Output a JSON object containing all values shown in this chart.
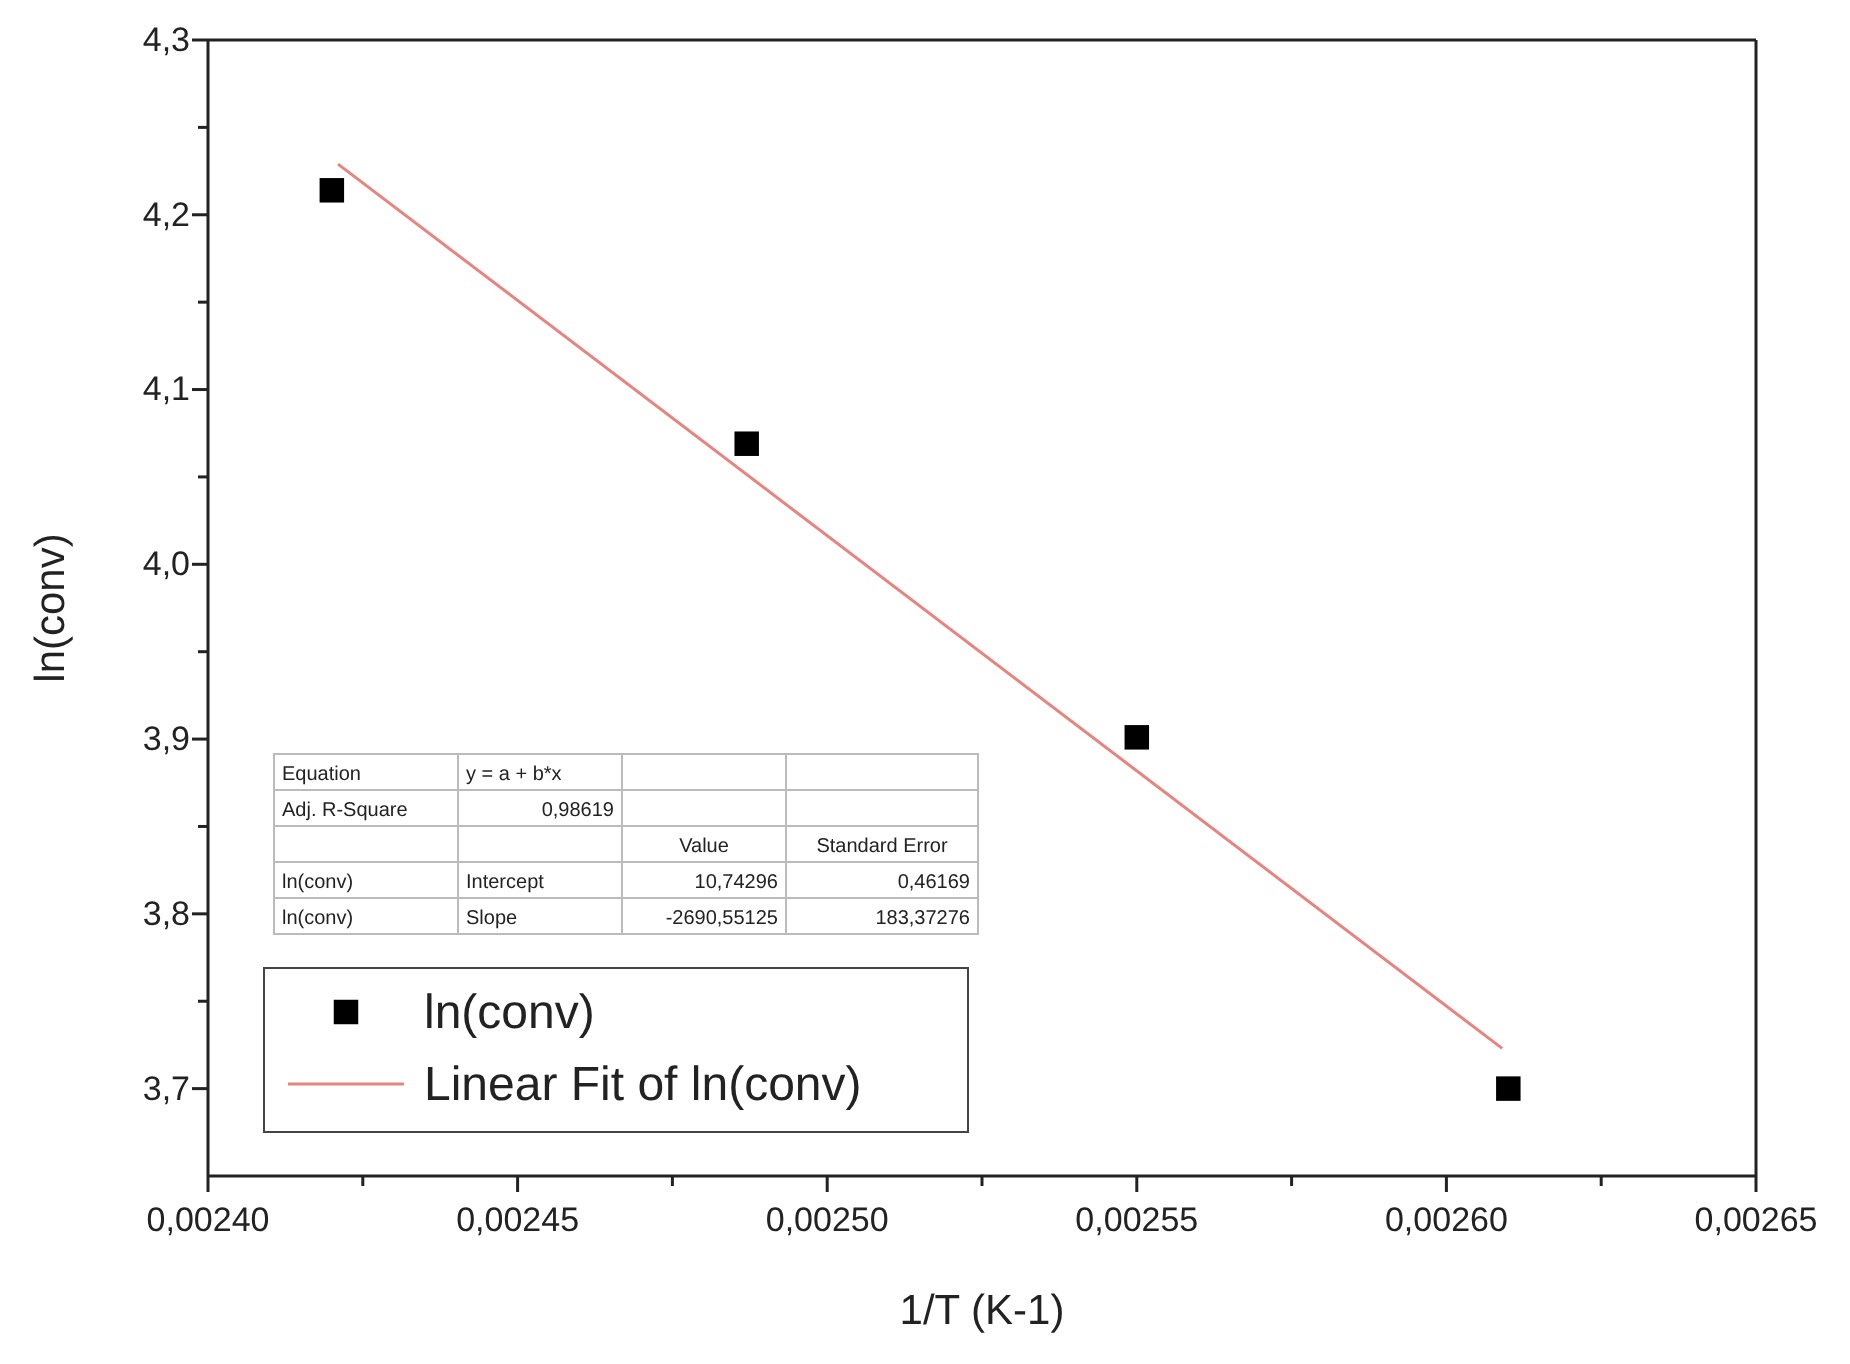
{
  "chart_data": {
    "type": "scatter",
    "xlabel": "1/T (K-1)",
    "ylabel": "ln(conv)",
    "xlim": [
      0.0024,
      0.00265
    ],
    "xticks": [
      {
        "value": 0.0024,
        "label": "0,00240"
      },
      {
        "value": 0.002425,
        "label": null
      },
      {
        "value": 0.00245,
        "label": "0,00245"
      },
      {
        "value": 0.002475,
        "label": null
      },
      {
        "value": 0.0025,
        "label": "0,00250"
      },
      {
        "value": 0.002525,
        "label": null
      },
      {
        "value": 0.00255,
        "label": "0,00255"
      },
      {
        "value": 0.002575,
        "label": null
      },
      {
        "value": 0.0026,
        "label": "0,00260"
      },
      {
        "value": 0.002625,
        "label": null
      },
      {
        "value": 0.00265,
        "label": "0,00265"
      }
    ],
    "ylim": [
      3.65,
      4.3
    ],
    "yticks": [
      {
        "value": 3.7,
        "label": "3,7"
      },
      {
        "value": 3.75,
        "label": null
      },
      {
        "value": 3.8,
        "label": "3,8"
      },
      {
        "value": 3.85,
        "label": null
      },
      {
        "value": 3.9,
        "label": "3,9"
      },
      {
        "value": 3.95,
        "label": null
      },
      {
        "value": 4.0,
        "label": "4,0"
      },
      {
        "value": 4.05,
        "label": null
      },
      {
        "value": 4.1,
        "label": "4,1"
      },
      {
        "value": 4.15,
        "label": null
      },
      {
        "value": 4.2,
        "label": "4,2"
      },
      {
        "value": 4.25,
        "label": null
      },
      {
        "value": 4.3,
        "label": "4,3"
      }
    ],
    "grid": false,
    "legend": "bottom left",
    "series": [
      {
        "name": "ln(conv)",
        "marker": "square",
        "color": "#000000",
        "x": [
          0.00242,
          0.002487,
          0.00255,
          0.00261
        ],
        "values": [
          4.214,
          4.069,
          3.901,
          3.7
        ]
      },
      {
        "name": "Linear Fit of ln(conv)",
        "type": "line",
        "marker": "none",
        "color": "#e8837f",
        "line_style": "solid",
        "x": [
          0.002421,
          0.002609
        ],
        "values": [
          4.229,
          3.723
        ]
      }
    ],
    "annotations": [
      "Equation",
      "y = a + b*x",
      "Adj. R-Square",
      "0,98619",
      "Value",
      "Standard Error",
      "ln(conv)",
      "Intercept",
      "10,74296",
      "0,46169",
      "ln(conv)",
      "Slope",
      "-2690,55125",
      "183,37276"
    ]
  }
}
